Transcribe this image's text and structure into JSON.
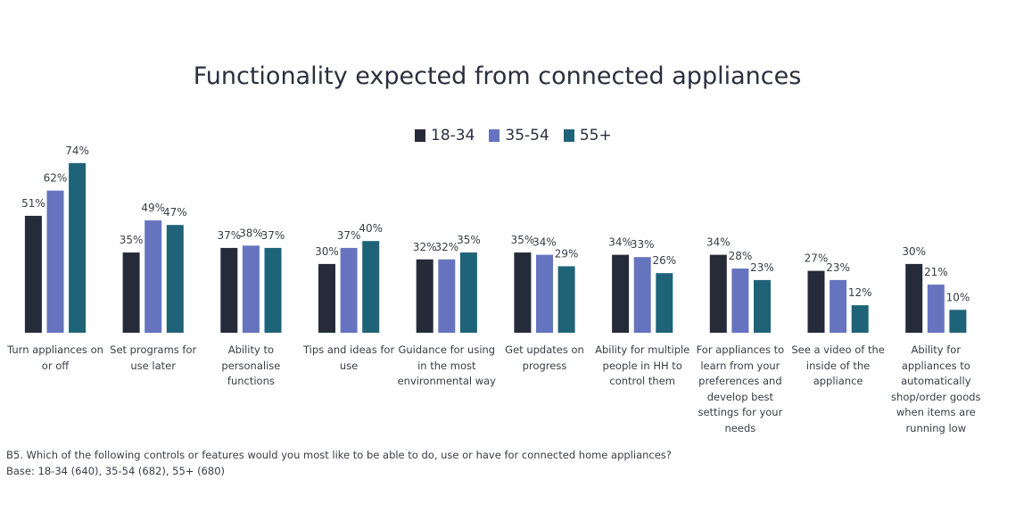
{
  "chart_data": {
    "type": "bar",
    "title": "Functionality expected from connected appliances",
    "categories": [
      "Turn appliances on or off",
      "Set programs for use later",
      "Ability to personalise functions",
      "Tips and ideas for use",
      "Guidance for using in the most environmental way",
      "Get updates on progress",
      "Ability for multiple people in HH to control them",
      "For appliances to learn from your preferences and develop best settings for your needs",
      "See a video of the inside of the appliance",
      "Ability for appliances to automatically shop/order goods when items are running low"
    ],
    "series": [
      {
        "name": "18-34",
        "color": "#262b3a",
        "values": [
          51,
          35,
          37,
          30,
          32,
          35,
          34,
          34,
          27,
          30
        ]
      },
      {
        "name": "35-54",
        "color": "#6674c0",
        "values": [
          62,
          49,
          38,
          37,
          32,
          34,
          33,
          28,
          23,
          21
        ]
      },
      {
        "name": "55+",
        "color": "#1f6378",
        "values": [
          74,
          47,
          37,
          40,
          35,
          29,
          26,
          23,
          12,
          10
        ]
      }
    ],
    "value_format": "percent",
    "ylim": [
      0,
      100
    ],
    "grid": false,
    "legend_position": "top-center"
  },
  "footnote": {
    "question": "B5. Which of the following controls or features would you most like to be able to do, use or have for connected home appliances?",
    "base": "Base: 18-34 (640), 35-54 (682), 55+ (680)"
  }
}
